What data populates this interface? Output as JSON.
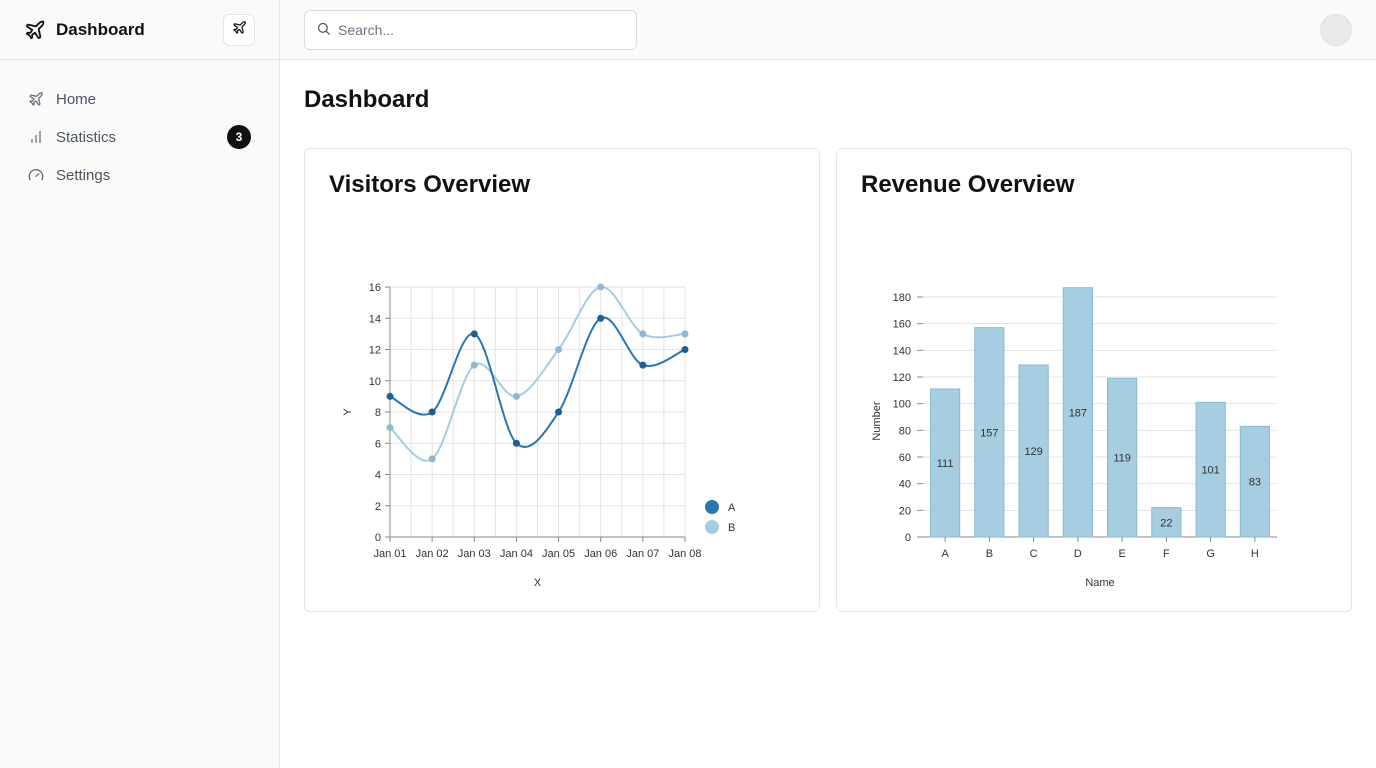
{
  "sidebar": {
    "brand_title": "Dashboard",
    "brand_icon": "plane-icon",
    "items": [
      {
        "label": "Home",
        "icon": "plane-icon"
      },
      {
        "label": "Statistics",
        "icon": "bar-chart-icon",
        "badge": "3"
      },
      {
        "label": "Settings",
        "icon": "gauge-icon"
      }
    ]
  },
  "header": {
    "search_placeholder": "Search...",
    "search_value": ""
  },
  "main": {
    "page_title": "Dashboard"
  },
  "colors": {
    "series_a": "#2a76b0",
    "series_b": "#a6cce0",
    "bar_fill": "#a6cde0",
    "bar_stroke": "#8bbad2"
  },
  "chart_data": [
    {
      "card_title": "Visitors Overview",
      "type": "line",
      "title": "",
      "xlabel": "X",
      "ylabel": "Y",
      "x": [
        "Jan 01",
        "Jan 02",
        "Jan 03",
        "Jan 04",
        "Jan 05",
        "Jan 06",
        "Jan 07",
        "Jan 08"
      ],
      "series": [
        {
          "name": "A",
          "values": [
            9,
            8,
            13,
            6,
            8,
            14,
            11,
            12
          ]
        },
        {
          "name": "B",
          "values": [
            7,
            5,
            11,
            9,
            12,
            16,
            13,
            13
          ]
        }
      ],
      "ylim": [
        0,
        16
      ],
      "yticks": [
        0,
        2,
        4,
        6,
        8,
        10,
        12,
        14,
        16
      ],
      "grid": true,
      "legend": "bottom-right"
    },
    {
      "card_title": "Revenue Overview",
      "type": "bar",
      "title": "",
      "xlabel": "Name",
      "ylabel": "Number",
      "categories": [
        "A",
        "B",
        "C",
        "D",
        "E",
        "F",
        "G",
        "H"
      ],
      "values": [
        111,
        157,
        129,
        187,
        119,
        22,
        101,
        83
      ],
      "ylim": [
        0,
        180
      ],
      "yticks": [
        0,
        20,
        40,
        60,
        80,
        100,
        120,
        140,
        160,
        180
      ],
      "grid": true
    }
  ]
}
